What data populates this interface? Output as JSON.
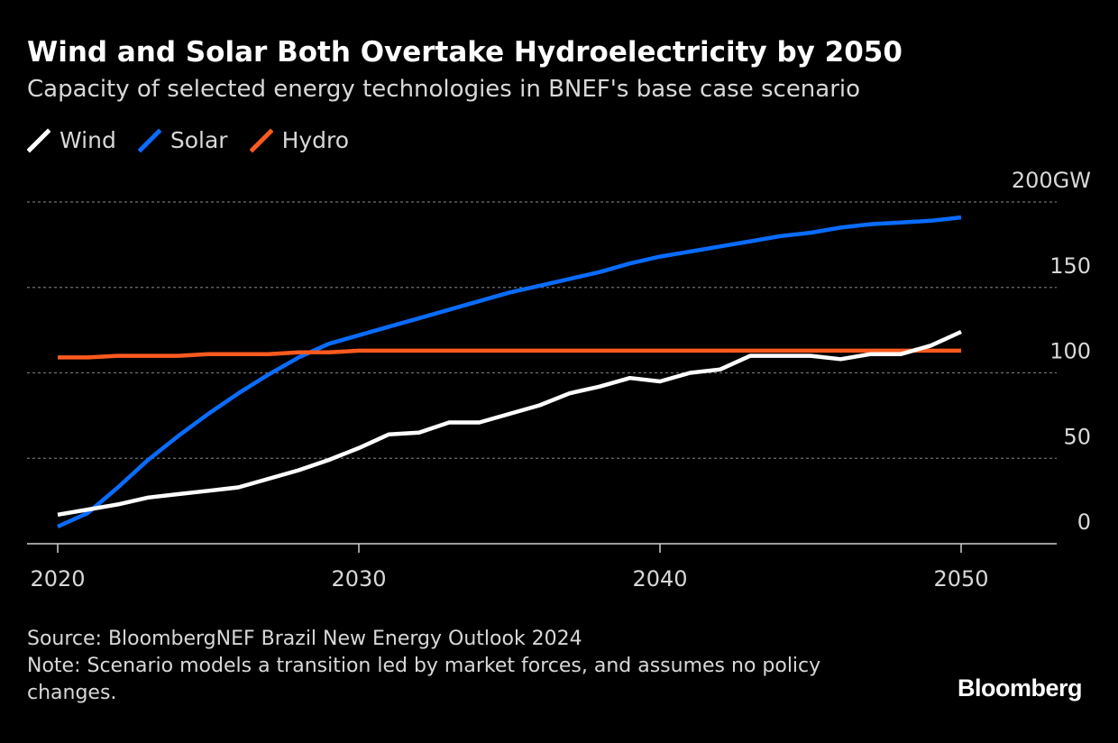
{
  "header": {
    "title": "Wind and Solar Both Overtake Hydroelectricity by 2050",
    "subtitle": "Capacity of selected energy technologies in BNEF's base case scenario"
  },
  "footer": {
    "source": "Source: BloombergNEF Brazil New Energy Outlook 2024",
    "note": "Note: Scenario models a transition led by market forces, and assumes no policy changes.",
    "brand": "Bloomberg"
  },
  "chart_data": {
    "type": "line",
    "title": "Wind and Solar Both Overtake Hydroelectricity by 2050",
    "subtitle": "Capacity of selected energy technologies in BNEF's base case scenario",
    "xlabel": "",
    "ylabel": "",
    "xlim": [
      2019,
      2053
    ],
    "ylim": [
      0,
      200
    ],
    "x_ticks": [
      2020,
      2030,
      2040,
      2050
    ],
    "x_tick_labels": [
      "2020",
      "2030",
      "2040",
      "2050"
    ],
    "y_ticks": [
      0,
      50,
      100,
      150,
      200
    ],
    "y_tick_labels": [
      "0",
      "50",
      "100",
      "150",
      "200GW"
    ],
    "grid": "horizontal dotted",
    "legend_position": "top-left",
    "x": [
      2020,
      2021,
      2022,
      2023,
      2024,
      2025,
      2026,
      2027,
      2028,
      2029,
      2030,
      2031,
      2032,
      2033,
      2034,
      2035,
      2036,
      2037,
      2038,
      2039,
      2040,
      2041,
      2042,
      2043,
      2044,
      2045,
      2046,
      2047,
      2048,
      2049,
      2050
    ],
    "series": [
      {
        "name": "Wind",
        "color": "#ffffff",
        "values": [
          17,
          20,
          23,
          27,
          29,
          31,
          33,
          38,
          43,
          49,
          56,
          64,
          65,
          71,
          71,
          76,
          81,
          88,
          92,
          97,
          95,
          100,
          102,
          110,
          110,
          110,
          108,
          111,
          111,
          116,
          124
        ]
      },
      {
        "name": "Solar",
        "color": "#0a6cff",
        "values": [
          10,
          18,
          33,
          49,
          63,
          76,
          88,
          99,
          109,
          117,
          122,
          127,
          132,
          137,
          142,
          147,
          151,
          155,
          159,
          164,
          168,
          171,
          174,
          177,
          180,
          182,
          185,
          187,
          188,
          189,
          191
        ]
      },
      {
        "name": "Hydro",
        "color": "#ff5a1f",
        "values": [
          109,
          109,
          110,
          110,
          110,
          111,
          111,
          111,
          112,
          112,
          113,
          113,
          113,
          113,
          113,
          113,
          113,
          113,
          113,
          113,
          113,
          113,
          113,
          113,
          113,
          113,
          113,
          113,
          113,
          113,
          113
        ]
      }
    ]
  }
}
